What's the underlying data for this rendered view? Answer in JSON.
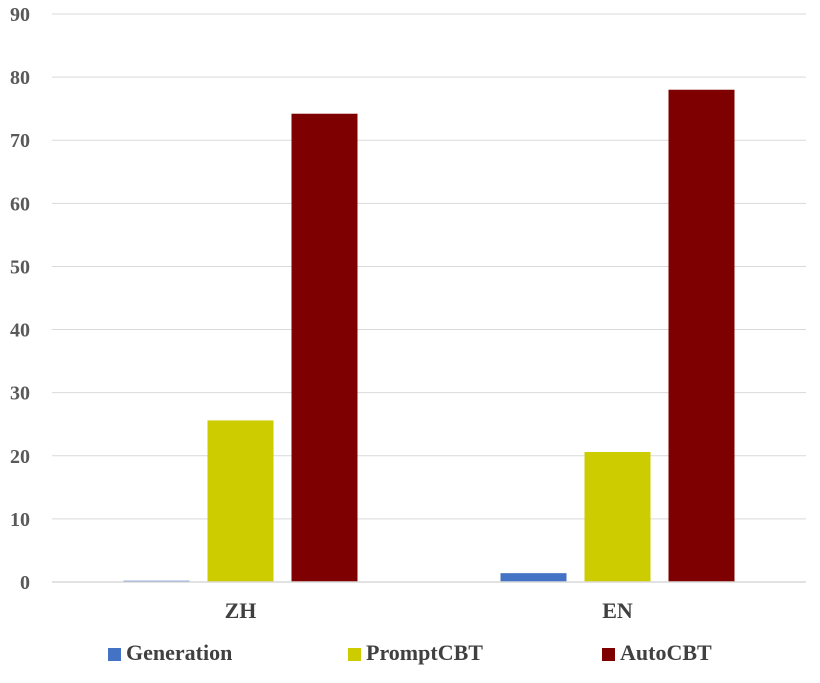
{
  "chart_data": {
    "type": "bar",
    "categories": [
      "ZH",
      "EN"
    ],
    "series": [
      {
        "name": "Generation",
        "values": [
          0.2,
          1.4
        ],
        "color": "#4472C4"
      },
      {
        "name": "PromptCBT",
        "values": [
          25.6,
          20.6
        ],
        "color": "#CCCC00"
      },
      {
        "name": "AutoCBT",
        "values": [
          74.2,
          78.0
        ],
        "color": "#7F0000"
      }
    ],
    "ylim": [
      0,
      90
    ],
    "yticks": [
      0,
      10,
      20,
      30,
      40,
      50,
      60,
      70,
      80,
      90
    ],
    "grid": true,
    "legend_position": "bottom",
    "title": "",
    "xlabel": "",
    "ylabel": ""
  }
}
